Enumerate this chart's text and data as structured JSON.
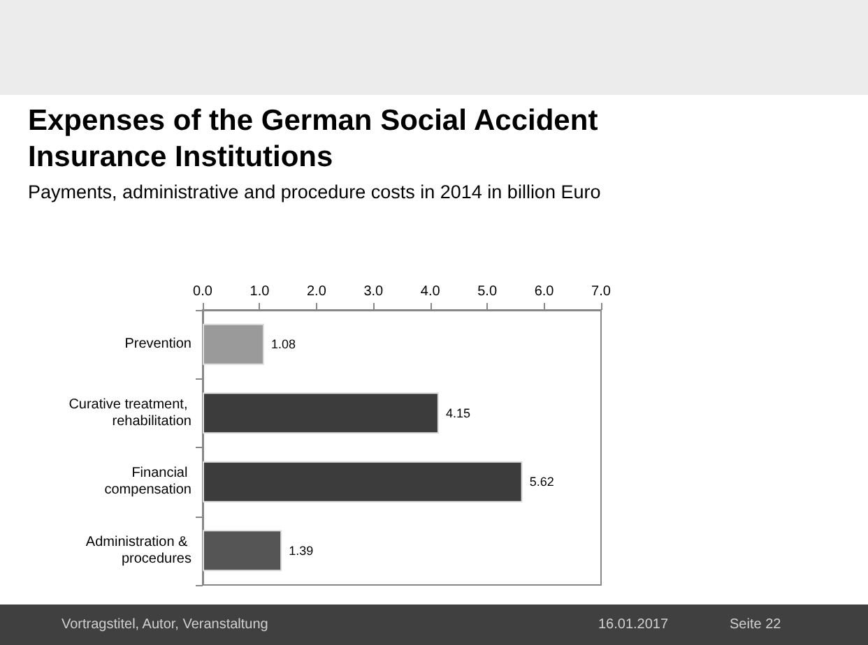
{
  "chart_data": {
    "type": "bar",
    "orientation": "horizontal",
    "title": "Expenses of the German Social Accident Insurance Institutions",
    "subtitle": "Payments, administrative and procedure costs in 2014 in billion Euro",
    "categories": [
      "Prevention",
      "Curative treatment, rehabilitation",
      "Financial compensation",
      "Administration & procedures"
    ],
    "values": [
      1.08,
      4.15,
      5.62,
      1.39
    ],
    "colors": [
      "#9a9a9a",
      "#3c3c3c",
      "#3c3c3c",
      "#555555"
    ],
    "xlim": [
      0,
      7
    ],
    "xticks": [
      {
        "value": 0,
        "label": "0.0"
      },
      {
        "value": 1,
        "label": "1.0"
      },
      {
        "value": 2,
        "label": "2.0"
      },
      {
        "value": 3,
        "label": "3.0"
      },
      {
        "value": 4,
        "label": "4.0"
      },
      {
        "value": 5,
        "label": "5.0"
      },
      {
        "value": 6,
        "label": "6.0"
      },
      {
        "value": 7,
        "label": "7.0"
      }
    ],
    "data_labels": true,
    "annotations": [
      "Vortragstitel, Autor, Veranstaltung",
      "16.01.2017",
      "Seite 22"
    ]
  }
}
